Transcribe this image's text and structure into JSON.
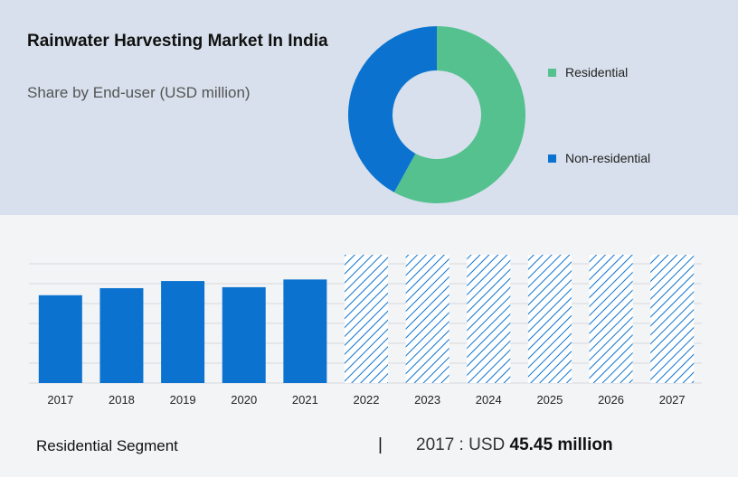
{
  "header": {
    "title": "Rainwater Harvesting Market In India",
    "subtitle": "Share by End-user (USD million)"
  },
  "legend": {
    "items": [
      {
        "label": "Residential",
        "color": "#55c18f"
      },
      {
        "label": "Non-residential",
        "color": "#0b73cf"
      }
    ]
  },
  "chart_data": [
    {
      "type": "pie",
      "title": "Share by End-user (USD million)",
      "labels": [
        "Residential",
        "Non-residential"
      ],
      "values": [
        58,
        42
      ],
      "colors": [
        "#55c18f",
        "#0b73cf"
      ],
      "legend_position": "right"
    },
    {
      "type": "bar",
      "categories": [
        "2017",
        "2018",
        "2019",
        "2020",
        "2021",
        "2022",
        "2023",
        "2024",
        "2025",
        "2026",
        "2027"
      ],
      "values": [
        45.45,
        49.1,
        52.8,
        49.6,
        53.6,
        66.4,
        66.4,
        66.4,
        66.4,
        66.4,
        66.4
      ],
      "forecast_from": "2022",
      "ylim": [
        0,
        72
      ],
      "grid": true,
      "colors": {
        "actual": "#0b73cf",
        "forecast": "#0b73cf"
      }
    }
  ],
  "footer": {
    "segment": "Residential Segment",
    "divider": "|",
    "value_prefix": "2017 : USD",
    "value_bold": "45.45 million"
  }
}
